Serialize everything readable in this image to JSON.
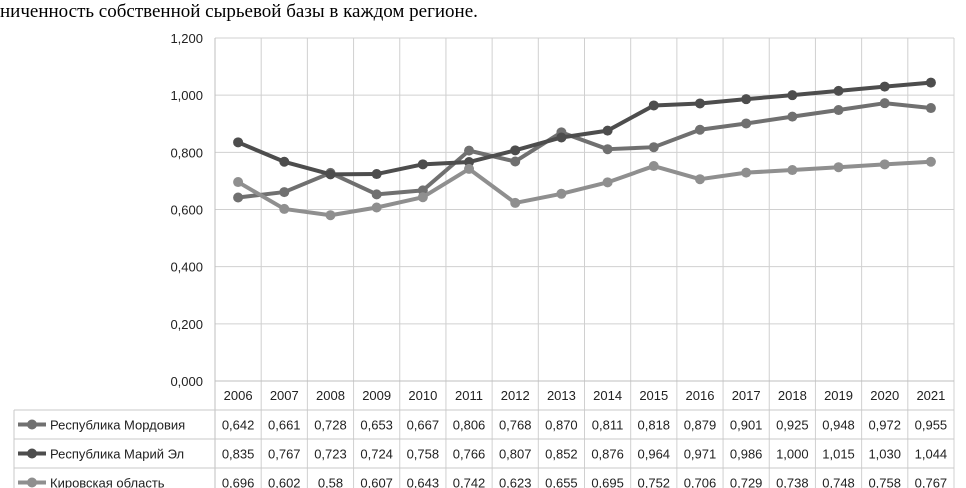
{
  "caption": "ниченность собственной сырьевой базы в каждом регионе.",
  "chart_data": {
    "type": "line",
    "title": "",
    "xlabel": "",
    "ylabel": "",
    "ylim": [
      0,
      1.2
    ],
    "yticks": [
      "0,000",
      "0,200",
      "0,400",
      "0,600",
      "0,800",
      "1,000",
      "1,200"
    ],
    "grid": true,
    "legend": "data-table-below",
    "categories": [
      "2006",
      "2007",
      "2008",
      "2009",
      "2010",
      "2011",
      "2012",
      "2013",
      "2014",
      "2015",
      "2016",
      "2017",
      "2018",
      "2019",
      "2020",
      "2021"
    ],
    "series": [
      {
        "name": "Республика Мордовия",
        "color": "#707070",
        "values": [
          0.642,
          0.661,
          0.728,
          0.653,
          0.667,
          0.806,
          0.768,
          0.87,
          0.811,
          0.818,
          0.879,
          0.901,
          0.925,
          0.948,
          0.972,
          0.955
        ],
        "labels": [
          "0,642",
          "0,661",
          "0,728",
          "0,653",
          "0,667",
          "0,806",
          "0,768",
          "0,870",
          "0,811",
          "0,818",
          "0,879",
          "0,901",
          "0,925",
          "0,948",
          "0,972",
          "0,955"
        ]
      },
      {
        "name": "Республика Марий Эл",
        "color": "#4d4d4d",
        "values": [
          0.835,
          0.767,
          0.723,
          0.724,
          0.758,
          0.766,
          0.807,
          0.852,
          0.876,
          0.964,
          0.971,
          0.986,
          1.0,
          1.015,
          1.03,
          1.044
        ],
        "labels": [
          "0,835",
          "0,767",
          "0,723",
          "0,724",
          "0,758",
          "0,766",
          "0,807",
          "0,852",
          "0,876",
          "0,964",
          "0,971",
          "0,986",
          "1,000",
          "1,015",
          "1,030",
          "1,044"
        ]
      },
      {
        "name": "Кировская область",
        "color": "#8f8f8f",
        "values": [
          0.696,
          0.602,
          0.58,
          0.607,
          0.643,
          0.742,
          0.623,
          0.655,
          0.695,
          0.752,
          0.706,
          0.729,
          0.738,
          0.748,
          0.758,
          0.767
        ],
        "labels": [
          "0,696",
          "0,602",
          "0,58",
          "0,607",
          "0,643",
          "0,742",
          "0,623",
          "0,655",
          "0,695",
          "0,752",
          "0,706",
          "0,729",
          "0,738",
          "0,748",
          "0,758",
          "0,767"
        ]
      }
    ]
  }
}
